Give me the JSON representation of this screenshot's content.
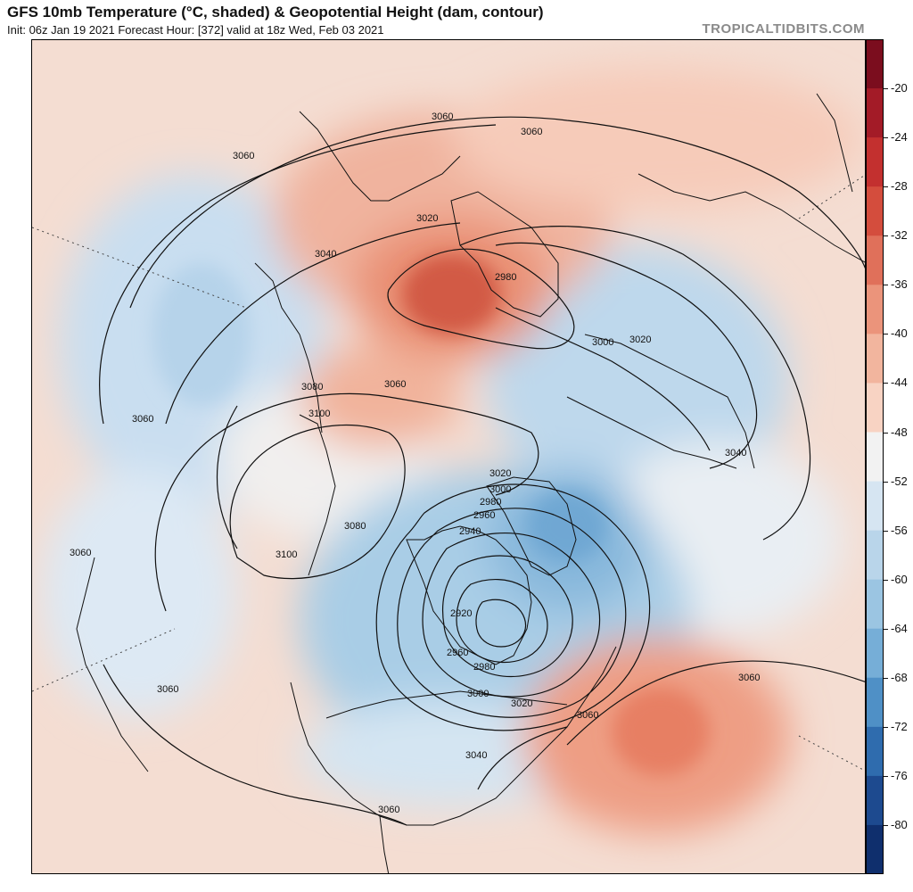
{
  "header": {
    "title": "GFS 10mb Temperature (°C, shaded) & Geopotential Height (dam, contour)",
    "subtitle": "Init: 06z Jan 19 2021   Forecast Hour: [372]   valid at 18z Wed, Feb 03 2021",
    "brand": "TROPICALTIDBITS.COM"
  },
  "colorbar": {
    "ticks": [
      "-20",
      "-24",
      "-28",
      "-32",
      "-36",
      "-40",
      "-44",
      "-48",
      "-52",
      "-56",
      "-60",
      "-64",
      "-68",
      "-72",
      "-76",
      "-80"
    ],
    "colors": [
      "#7b0d1e",
      "#a31b27",
      "#c3302f",
      "#d44d3d",
      "#e0705a",
      "#eb947b",
      "#f2b59e",
      "#f8d3c3",
      "#f2f2f2",
      "#d6e5f2",
      "#b9d5ea",
      "#9bc5e2",
      "#76aed7",
      "#4f90c6",
      "#2f6cae",
      "#1d4a8f",
      "#0f2f6d"
    ]
  },
  "contour_labels": [
    "3060",
    "3060",
    "3060",
    "3040",
    "3020",
    "2980",
    "3000",
    "3020",
    "3080",
    "3060",
    "3100",
    "3060",
    "3060",
    "3040",
    "3020",
    "3000",
    "2980",
    "2960",
    "2940",
    "2920",
    "2960",
    "2980",
    "3000",
    "3020",
    "3040",
    "3080",
    "3100",
    "3060",
    "3060",
    "3060",
    "3060"
  ]
}
